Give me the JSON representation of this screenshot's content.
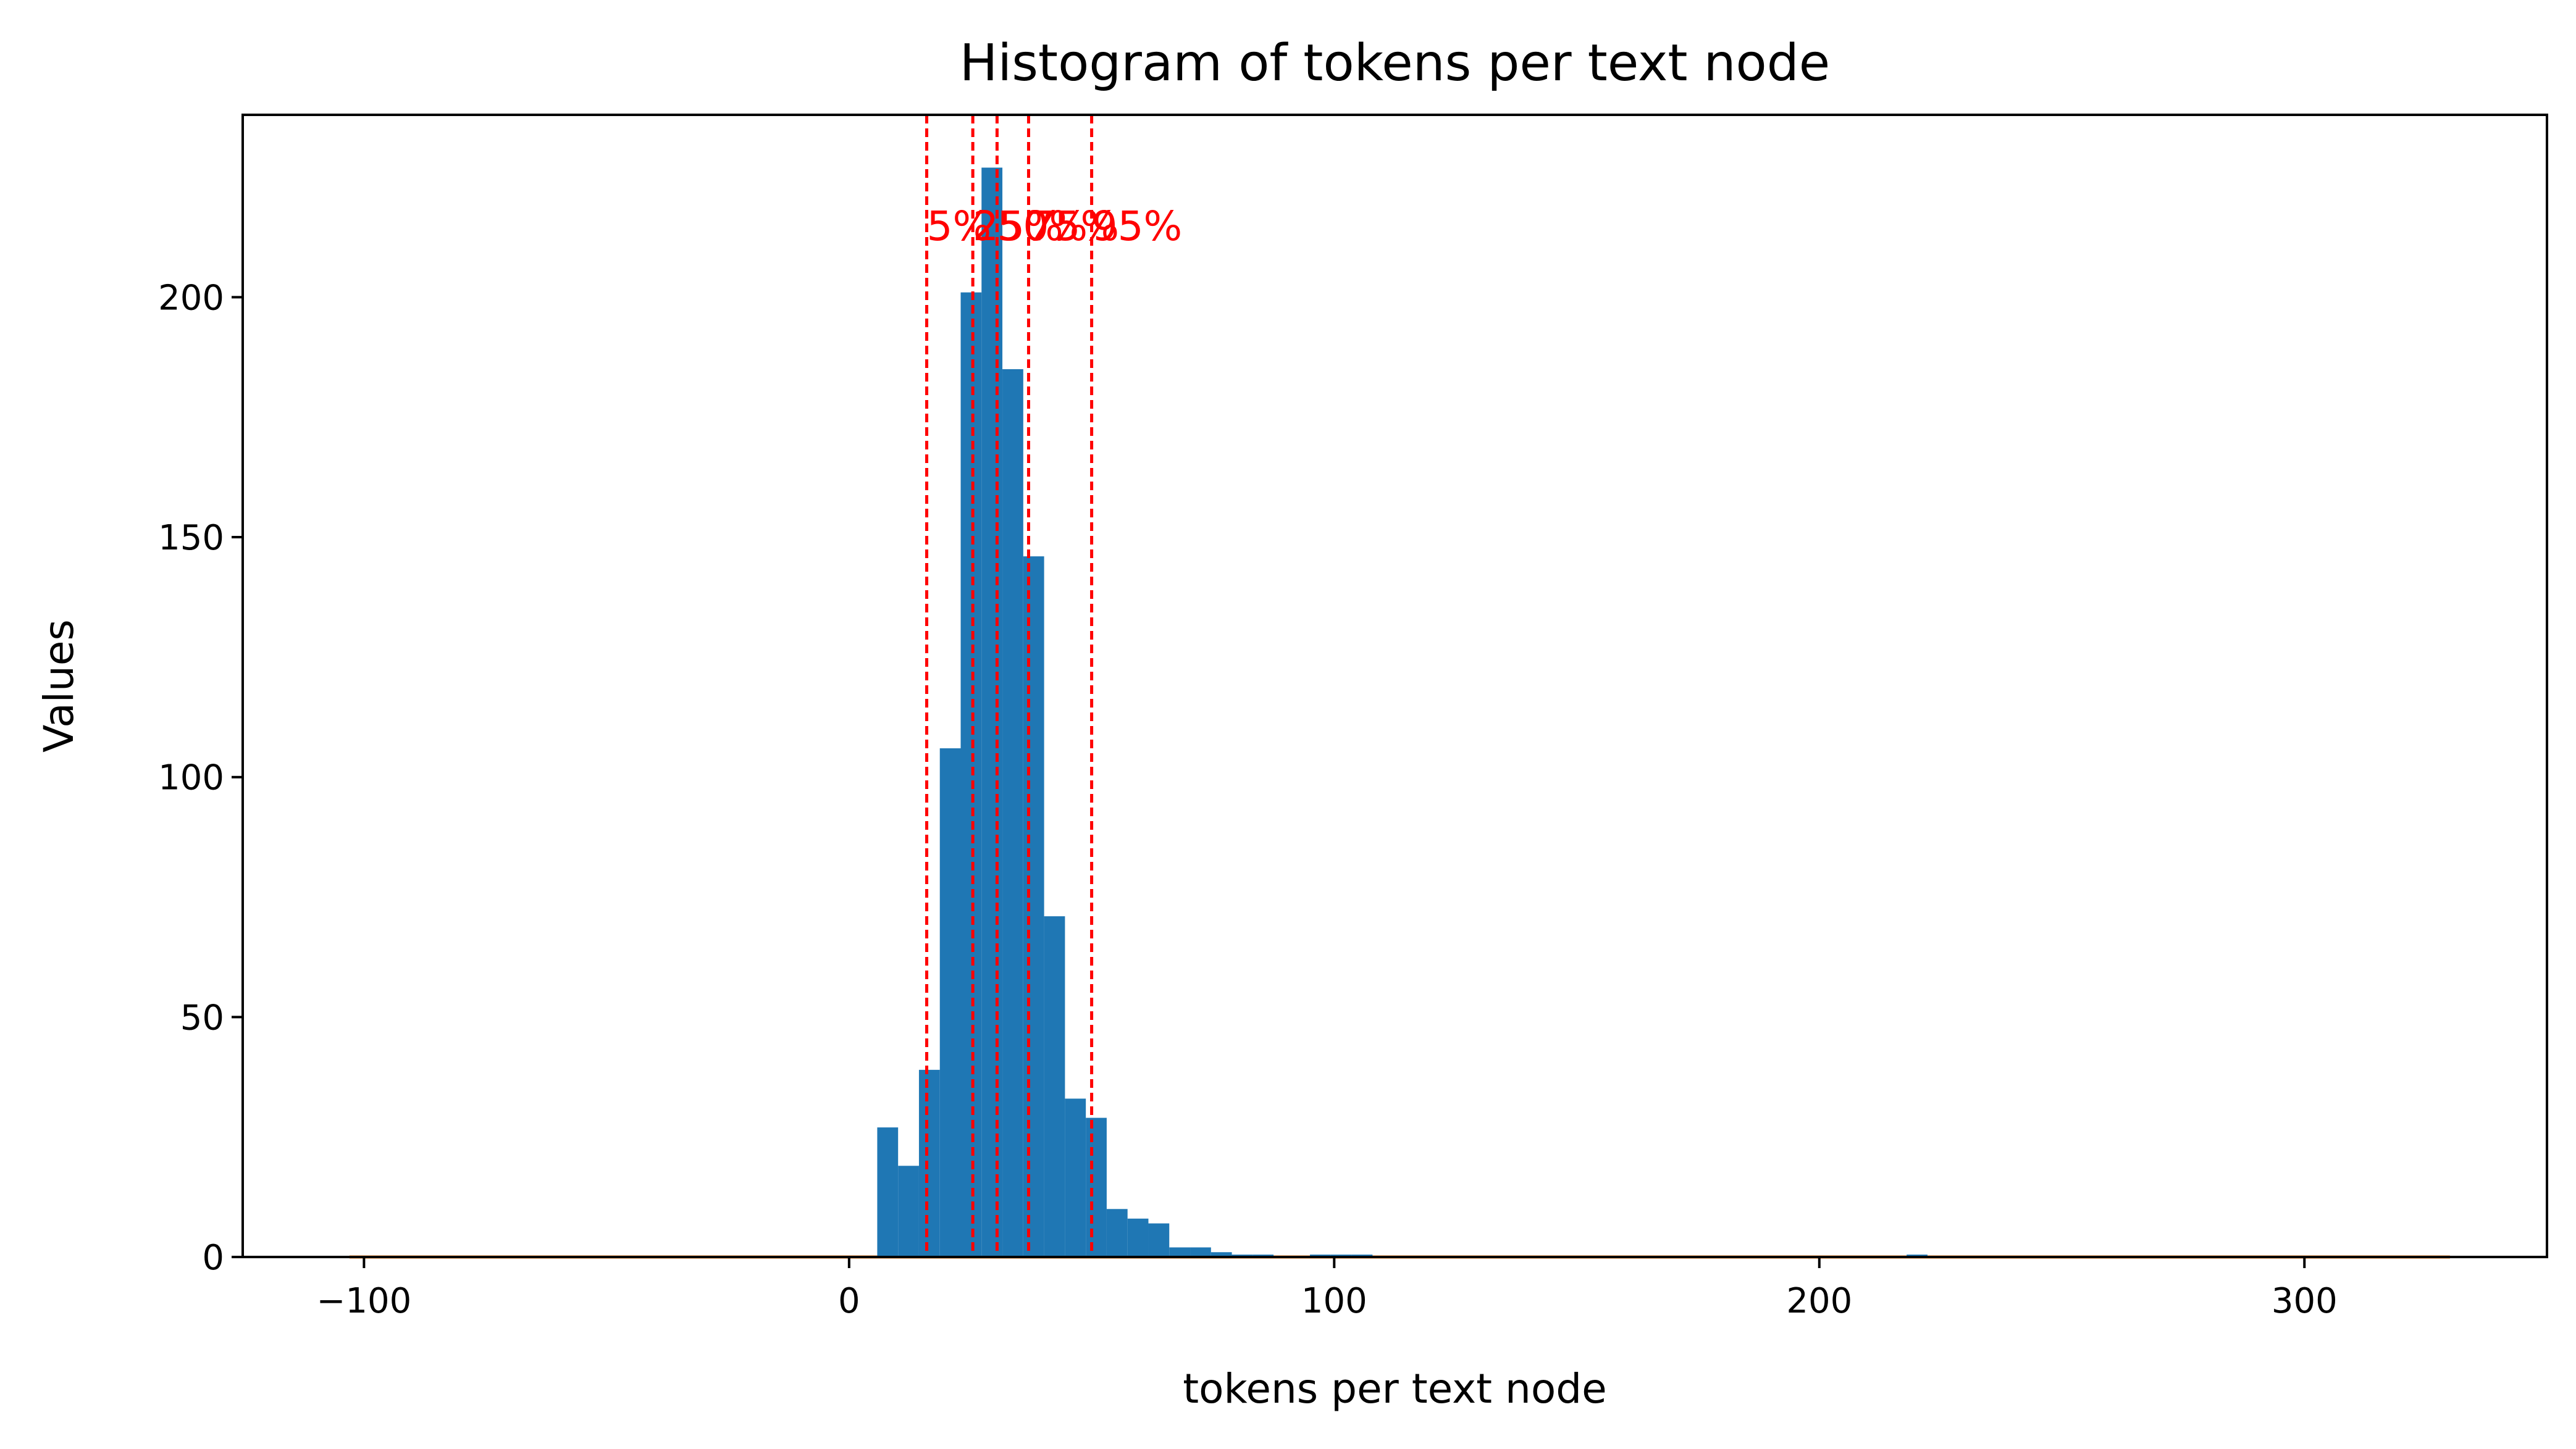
{
  "chart_data": {
    "type": "bar",
    "title": "Histogram of tokens per text node",
    "xlabel": "tokens per text node",
    "ylabel": "Values",
    "xlim": [
      -125,
      350
    ],
    "ylim": [
      0,
      238
    ],
    "xticks": [
      -100,
      0,
      100,
      200,
      300
    ],
    "yticks": [
      0,
      50,
      100,
      150,
      200
    ],
    "bar_color": "#1f77b4",
    "bins": [
      {
        "start": 5.8,
        "end": 10.1,
        "count": 27
      },
      {
        "start": 10.1,
        "end": 14.4,
        "count": 19
      },
      {
        "start": 14.4,
        "end": 18.7,
        "count": 39
      },
      {
        "start": 18.7,
        "end": 23.0,
        "count": 106
      },
      {
        "start": 23.0,
        "end": 27.3,
        "count": 201
      },
      {
        "start": 27.3,
        "end": 31.6,
        "count": 227
      },
      {
        "start": 31.6,
        "end": 35.9,
        "count": 185
      },
      {
        "start": 35.9,
        "end": 40.2,
        "count": 146
      },
      {
        "start": 40.2,
        "end": 44.5,
        "count": 71
      },
      {
        "start": 44.5,
        "end": 48.8,
        "count": 33
      },
      {
        "start": 48.8,
        "end": 53.1,
        "count": 29
      },
      {
        "start": 53.1,
        "end": 57.4,
        "count": 10
      },
      {
        "start": 57.4,
        "end": 61.7,
        "count": 8
      },
      {
        "start": 61.7,
        "end": 66.0,
        "count": 7
      },
      {
        "start": 66.0,
        "end": 70.3,
        "count": 2
      },
      {
        "start": 70.3,
        "end": 74.6,
        "count": 2
      },
      {
        "start": 74.6,
        "end": 78.9,
        "count": 1
      },
      {
        "start": 78.9,
        "end": 83.2,
        "count": 0.5
      },
      {
        "start": 83.2,
        "end": 87.5,
        "count": 0.5
      },
      {
        "start": 95.0,
        "end": 99.3,
        "count": 0.5
      },
      {
        "start": 99.3,
        "end": 103.6,
        "count": 0.5
      },
      {
        "start": 103.6,
        "end": 107.9,
        "count": 0.5
      },
      {
        "start": 218.0,
        "end": 222.3,
        "count": 0.5
      }
    ],
    "baseline": {
      "x": [
        -103,
        330
      ],
      "y": 0,
      "color": "#ff7f0e"
    },
    "percentiles": [
      {
        "label": "5%",
        "value": 16
      },
      {
        "label": "25%",
        "value": 25.5
      },
      {
        "label": "50%",
        "value": 30.5
      },
      {
        "label": "75%",
        "value": 37
      },
      {
        "label": "95%",
        "value": 50
      }
    ],
    "percentile_color": "#ff0000",
    "percentile_label_y": 215
  }
}
